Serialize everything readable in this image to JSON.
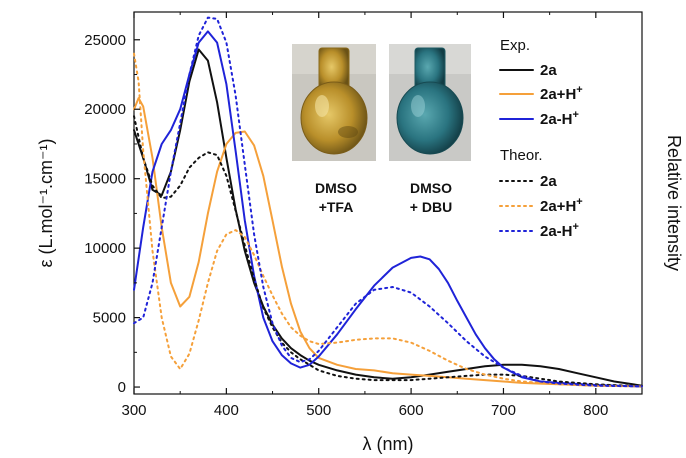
{
  "chart_data": {
    "type": "line",
    "xlabel": "λ (nm)",
    "ylabel": "ε (L.mol⁻¹.cm⁻¹)",
    "y2label": "Relative intensity",
    "xlim": [
      300,
      850
    ],
    "ylim": [
      -500,
      27000
    ],
    "xticks": [
      300,
      400,
      500,
      600,
      700,
      800
    ],
    "yticks": [
      0,
      5000,
      10000,
      15000,
      20000,
      25000
    ],
    "grid": false,
    "legend_position": "top-right",
    "legend_groups": [
      "Exp.",
      "Theor."
    ],
    "photos": [
      {
        "name": "tfa-flask",
        "caption_line1": "DMSO",
        "caption_line2": "+TFA",
        "liquid_color": "#c8a234"
      },
      {
        "name": "dbu-flask",
        "caption_line1": "DMSO",
        "caption_line2": "+ DBU",
        "liquid_color": "#2f7c86"
      }
    ],
    "series": [
      {
        "name": "2a",
        "group": "Exp.",
        "color": "#111111",
        "dash": "solid",
        "points": [
          [
            300,
            18500
          ],
          [
            310,
            16500
          ],
          [
            320,
            14200
          ],
          [
            330,
            13800
          ],
          [
            340,
            15500
          ],
          [
            350,
            18500
          ],
          [
            360,
            22000
          ],
          [
            370,
            24300
          ],
          [
            380,
            23500
          ],
          [
            390,
            20500
          ],
          [
            400,
            16500
          ],
          [
            410,
            12800
          ],
          [
            420,
            9800
          ],
          [
            430,
            7500
          ],
          [
            440,
            5800
          ],
          [
            450,
            4500
          ],
          [
            460,
            3500
          ],
          [
            470,
            2800
          ],
          [
            480,
            2300
          ],
          [
            490,
            1900
          ],
          [
            500,
            1600
          ],
          [
            520,
            1200
          ],
          [
            540,
            900
          ],
          [
            560,
            700
          ],
          [
            580,
            600
          ],
          [
            600,
            700
          ],
          [
            620,
            900
          ],
          [
            640,
            1100
          ],
          [
            660,
            1300
          ],
          [
            680,
            1500
          ],
          [
            700,
            1600
          ],
          [
            720,
            1600
          ],
          [
            740,
            1500
          ],
          [
            760,
            1300
          ],
          [
            780,
            1000
          ],
          [
            800,
            700
          ],
          [
            820,
            400
          ],
          [
            840,
            200
          ],
          [
            850,
            100
          ]
        ]
      },
      {
        "name": "2a+H+",
        "group": "Exp.",
        "color": "#f5a03a",
        "dash": "solid",
        "points": [
          [
            300,
            20000
          ],
          [
            305,
            20800
          ],
          [
            310,
            20200
          ],
          [
            320,
            16500
          ],
          [
            330,
            11500
          ],
          [
            340,
            7500
          ],
          [
            350,
            5800
          ],
          [
            360,
            6500
          ],
          [
            370,
            9000
          ],
          [
            380,
            12500
          ],
          [
            390,
            15500
          ],
          [
            400,
            17500
          ],
          [
            410,
            18300
          ],
          [
            420,
            18400
          ],
          [
            430,
            17400
          ],
          [
            440,
            15200
          ],
          [
            450,
            12000
          ],
          [
            460,
            8700
          ],
          [
            470,
            6000
          ],
          [
            480,
            4000
          ],
          [
            490,
            2800
          ],
          [
            500,
            2100
          ],
          [
            520,
            1600
          ],
          [
            540,
            1300
          ],
          [
            560,
            1200
          ],
          [
            580,
            1000
          ],
          [
            600,
            900
          ],
          [
            620,
            800
          ],
          [
            640,
            700
          ],
          [
            660,
            600
          ],
          [
            680,
            500
          ],
          [
            700,
            400
          ],
          [
            720,
            300
          ],
          [
            740,
            250
          ],
          [
            760,
            200
          ],
          [
            800,
            100
          ],
          [
            850,
            50
          ]
        ]
      },
      {
        "name": "2a-H+",
        "group": "Exp.",
        "color": "#1f23d8",
        "dash": "solid",
        "points": [
          [
            300,
            7000
          ],
          [
            310,
            11500
          ],
          [
            320,
            15500
          ],
          [
            330,
            17500
          ],
          [
            340,
            18500
          ],
          [
            350,
            20000
          ],
          [
            360,
            22500
          ],
          [
            370,
            24800
          ],
          [
            380,
            25600
          ],
          [
            390,
            24800
          ],
          [
            400,
            21800
          ],
          [
            410,
            17000
          ],
          [
            420,
            12000
          ],
          [
            430,
            8000
          ],
          [
            440,
            5000
          ],
          [
            450,
            3300
          ],
          [
            460,
            2300
          ],
          [
            470,
            1700
          ],
          [
            480,
            1400
          ],
          [
            490,
            1600
          ],
          [
            500,
            2200
          ],
          [
            520,
            3800
          ],
          [
            540,
            5600
          ],
          [
            560,
            7300
          ],
          [
            580,
            8600
          ],
          [
            600,
            9300
          ],
          [
            610,
            9400
          ],
          [
            620,
            9200
          ],
          [
            630,
            8500
          ],
          [
            640,
            7500
          ],
          [
            650,
            6200
          ],
          [
            660,
            5000
          ],
          [
            670,
            3800
          ],
          [
            680,
            2800
          ],
          [
            690,
            2000
          ],
          [
            700,
            1400
          ],
          [
            720,
            700
          ],
          [
            740,
            400
          ],
          [
            760,
            300
          ],
          [
            800,
            150
          ],
          [
            850,
            50
          ]
        ]
      },
      {
        "name": "2a",
        "group": "Theor.",
        "color": "#111111",
        "dash": "dotted",
        "points": [
          [
            300,
            19500
          ],
          [
            310,
            16500
          ],
          [
            320,
            14500
          ],
          [
            330,
            13600
          ],
          [
            340,
            13700
          ],
          [
            350,
            14500
          ],
          [
            360,
            15800
          ],
          [
            370,
            16500
          ],
          [
            380,
            16900
          ],
          [
            390,
            16700
          ],
          [
            400,
            15200
          ],
          [
            410,
            12700
          ],
          [
            420,
            10200
          ],
          [
            430,
            7800
          ],
          [
            440,
            5700
          ],
          [
            450,
            4300
          ],
          [
            460,
            3200
          ],
          [
            470,
            2500
          ],
          [
            480,
            2000
          ],
          [
            490,
            1600
          ],
          [
            500,
            1200
          ],
          [
            520,
            800
          ],
          [
            540,
            600
          ],
          [
            560,
            500
          ],
          [
            580,
            500
          ],
          [
            600,
            500
          ],
          [
            620,
            600
          ],
          [
            640,
            700
          ],
          [
            660,
            800
          ],
          [
            680,
            900
          ],
          [
            700,
            900
          ],
          [
            720,
            800
          ],
          [
            740,
            600
          ],
          [
            760,
            400
          ],
          [
            800,
            200
          ],
          [
            850,
            50
          ]
        ]
      },
      {
        "name": "2a+H+",
        "group": "Theor.",
        "color": "#f5a03a",
        "dash": "dotted",
        "points": [
          [
            300,
            24000
          ],
          [
            305,
            22000
          ],
          [
            310,
            17000
          ],
          [
            320,
            9800
          ],
          [
            330,
            5000
          ],
          [
            340,
            2200
          ],
          [
            350,
            1300
          ],
          [
            360,
            2400
          ],
          [
            370,
            4800
          ],
          [
            380,
            7500
          ],
          [
            390,
            9800
          ],
          [
            400,
            11000
          ],
          [
            410,
            11300
          ],
          [
            420,
            10800
          ],
          [
            430,
            9500
          ],
          [
            440,
            8000
          ],
          [
            450,
            6600
          ],
          [
            460,
            5300
          ],
          [
            470,
            4300
          ],
          [
            480,
            3700
          ],
          [
            490,
            3300
          ],
          [
            500,
            3100
          ],
          [
            520,
            3200
          ],
          [
            540,
            3400
          ],
          [
            560,
            3500
          ],
          [
            580,
            3500
          ],
          [
            600,
            3200
          ],
          [
            620,
            2600
          ],
          [
            640,
            1900
          ],
          [
            660,
            1300
          ],
          [
            680,
            900
          ],
          [
            700,
            600
          ],
          [
            720,
            400
          ],
          [
            740,
            300
          ],
          [
            760,
            200
          ],
          [
            800,
            100
          ],
          [
            850,
            50
          ]
        ]
      },
      {
        "name": "2a-H+",
        "group": "Theor.",
        "color": "#1f23d8",
        "dash": "dotted",
        "points": [
          [
            300,
            4600
          ],
          [
            310,
            5000
          ],
          [
            320,
            7500
          ],
          [
            330,
            11500
          ],
          [
            340,
            15500
          ],
          [
            350,
            19000
          ],
          [
            360,
            22500
          ],
          [
            370,
            25300
          ],
          [
            380,
            26600
          ],
          [
            390,
            26500
          ],
          [
            400,
            24800
          ],
          [
            410,
            21000
          ],
          [
            420,
            16000
          ],
          [
            430,
            11000
          ],
          [
            440,
            7200
          ],
          [
            450,
            4600
          ],
          [
            460,
            3000
          ],
          [
            470,
            2100
          ],
          [
            480,
            1800
          ],
          [
            490,
            2000
          ],
          [
            500,
            2600
          ],
          [
            520,
            4300
          ],
          [
            540,
            6000
          ],
          [
            560,
            7000
          ],
          [
            580,
            7200
          ],
          [
            600,
            6800
          ],
          [
            620,
            5800
          ],
          [
            640,
            4600
          ],
          [
            660,
            3300
          ],
          [
            680,
            2200
          ],
          [
            700,
            1400
          ],
          [
            720,
            800
          ],
          [
            740,
            400
          ],
          [
            760,
            250
          ],
          [
            800,
            100
          ],
          [
            850,
            50
          ]
        ]
      }
    ]
  }
}
